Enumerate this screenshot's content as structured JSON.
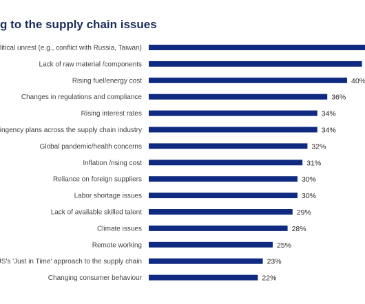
{
  "chart_data": {
    "type": "bar",
    "orientation": "horizontal",
    "title": "g to the supply chain issues",
    "categories": [
      "political unrest (e.g., conflict with Russia, Taiwan)",
      "Lack of raw material /components",
      "Rising fuel/energy cost",
      "Changes in regulations and compliance",
      "Rising interest rates",
      "ntingency plans across the supply chain industry",
      "Global pandemic/health concerns",
      "Inflation /rising cost",
      "Reliance on foreign suppliers",
      "Labor shortage issues",
      "Lack of available skilled talent",
      "Climate issues",
      "Remote working",
      "US's 'Just in Time' approach to the supply chain",
      "Changing consumer behaviour"
    ],
    "values": [
      45,
      43,
      40,
      36,
      34,
      34,
      32,
      31,
      30,
      30,
      29,
      28,
      25,
      23,
      22
    ],
    "value_labels": [
      "",
      "",
      "40%",
      "36%",
      "34%",
      "34%",
      "32%",
      "31%",
      "30%",
      "30%",
      "29%",
      "28%",
      "25%",
      "23%",
      "22%"
    ],
    "unit": "%",
    "bar_color": "#0f2a80",
    "grid": false,
    "legend": "none"
  }
}
